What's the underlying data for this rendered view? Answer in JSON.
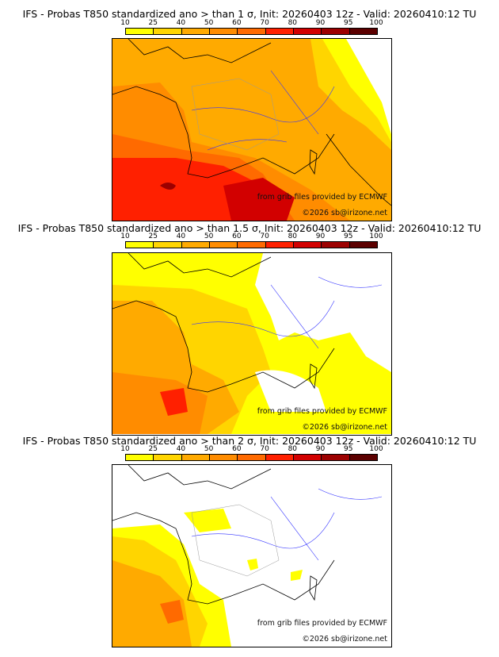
{
  "colorbar": {
    "labels": [
      "10",
      "25",
      "40",
      "50",
      "60",
      "70",
      "80",
      "90",
      "95",
      "100"
    ],
    "colors": [
      "#ffff00",
      "#ffd500",
      "#ffaa00",
      "#ff8c00",
      "#ff6a00",
      "#ff2000",
      "#d20000",
      "#9c0000",
      "#5c0000"
    ]
  },
  "panels": [
    {
      "title": "IFS - Probas T850  standardized ano > than 1 σ, Init: 20260403 12z - Valid: 20260410:12 TU"
    },
    {
      "title": "IFS - Probas T850  standardized ano > than 1.5 σ, Init: 20260403 12z - Valid: 20260410:12 TU"
    },
    {
      "title": "IFS - Probas T850  standardized ano > than 2 σ, Init: 20260403 12z - Valid: 20260410:12 TU"
    }
  ],
  "credits": {
    "source": "from grib files provided by ECMWF",
    "copyright": "©2026 sb@irizone.net"
  }
}
